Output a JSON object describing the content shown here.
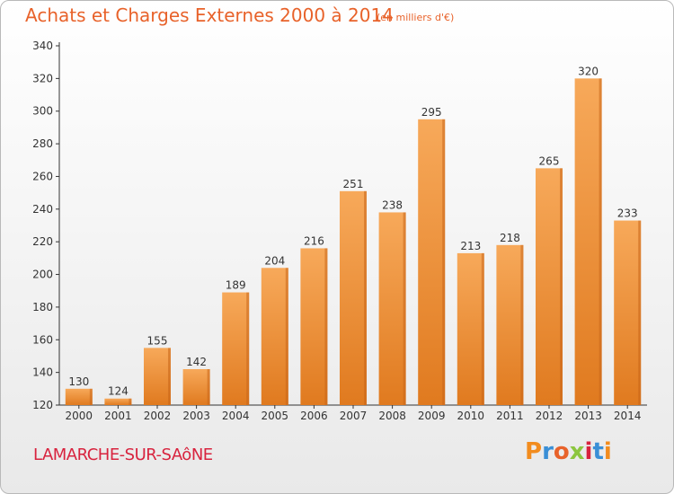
{
  "header": {
    "title": "Achats et Charges Externes 2000 à 2014",
    "subtitle": "(en milliers d'€)"
  },
  "footer": {
    "town": "LAMARCHE-SUR-SAôNE",
    "logo": "Proxiti",
    "logo_colors": [
      "#f28c1e",
      "#3a8fd6",
      "#e8622a",
      "#8cc63f",
      "#d8233e",
      "#3a8fd6",
      "#f28c1e"
    ]
  },
  "colors": {
    "bar_top": "#f7a95a",
    "bar_bottom": "#e07a1f",
    "bar_side": "#c9661a",
    "axis": "#333333",
    "grid": "#cccccc",
    "title": "#e8622a"
  },
  "chart_data": {
    "type": "bar",
    "categories": [
      "2000",
      "2001",
      "2002",
      "2003",
      "2004",
      "2005",
      "2006",
      "2007",
      "2008",
      "2009",
      "2010",
      "2011",
      "2012",
      "2013",
      "2014"
    ],
    "values": [
      130,
      124,
      155,
      142,
      189,
      204,
      216,
      251,
      238,
      295,
      213,
      218,
      265,
      320,
      233
    ],
    "title": "Achats et Charges Externes 2000 à 2014",
    "subtitle": "(en milliers d'€)",
    "xlabel": "",
    "ylabel": "",
    "ylim": [
      120,
      340
    ],
    "yticks": [
      120,
      140,
      160,
      180,
      200,
      220,
      240,
      260,
      280,
      300,
      320,
      340
    ],
    "grid": false,
    "data_labels": true
  }
}
